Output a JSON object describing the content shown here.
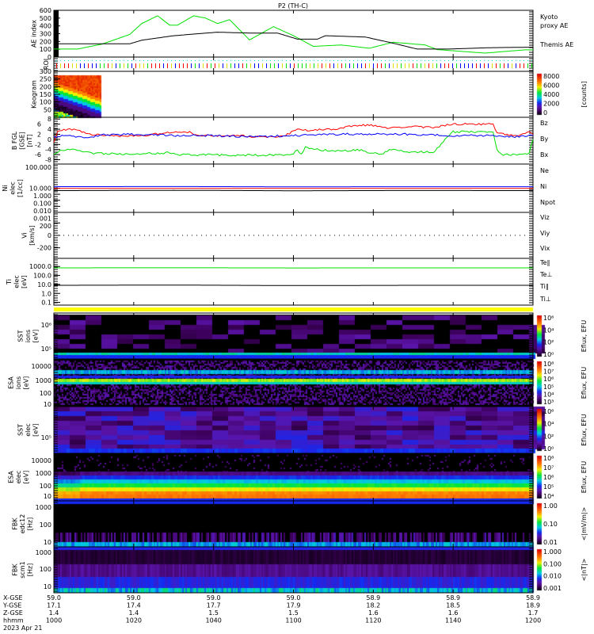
{
  "title": "P2 (TH-C)",
  "chart_data": {
    "type": "line",
    "title": "P2 (TH-C)",
    "time_range_minutes": [
      0,
      120
    ],
    "time_tick_labels": [
      "1000",
      "1020",
      "1040",
      "1100",
      "1120",
      "1140",
      "1200"
    ],
    "panels": {
      "ae": {
        "ylabel": [
          "AE index"
        ],
        "ylim": [
          0,
          600
        ],
        "yticks": [
          [
            0,
            "0"
          ],
          [
            100,
            "100"
          ],
          [
            200,
            "200"
          ],
          [
            300,
            "300"
          ],
          [
            400,
            "400"
          ],
          [
            500,
            "500"
          ],
          [
            600,
            "600"
          ]
        ],
        "series": [
          {
            "name": "Kyoto proxy AE",
            "legend": [
              "Kyoto",
              "proxy AE"
            ],
            "color": "#00e000",
            "points": [
              [
                0,
                103
              ],
              [
                6,
                103
              ],
              [
                12,
                165
              ],
              [
                19,
                290
              ],
              [
                22,
                430
              ],
              [
                26,
                530
              ],
              [
                29,
                410
              ],
              [
                31,
                410
              ],
              [
                35,
                530
              ],
              [
                38,
                500
              ],
              [
                41,
                430
              ],
              [
                44,
                480
              ],
              [
                49,
                220
              ],
              [
                55,
                390
              ],
              [
                60,
                275
              ],
              [
                65,
                137
              ],
              [
                72,
                155
              ],
              [
                79,
                113
              ],
              [
                85,
                190
              ],
              [
                93,
                155
              ],
              [
                96,
                96
              ],
              [
                108,
                51
              ],
              [
                118,
                93
              ],
              [
                120,
                93
              ]
            ]
          },
          {
            "name": "Themis AE",
            "legend": [
              "Themis AE"
            ],
            "color": "#000000",
            "points": [
              [
                0,
                170
              ],
              [
                19,
                170
              ],
              [
                22,
                216
              ],
              [
                30,
                274
              ],
              [
                41,
                319
              ],
              [
                49,
                308
              ],
              [
                56,
                308
              ],
              [
                61,
                230
              ],
              [
                66,
                230
              ],
              [
                68,
                274
              ],
              [
                78,
                257
              ],
              [
                84,
                189
              ],
              [
                91,
                103
              ],
              [
                99,
                103
              ],
              [
                109,
                120
              ],
              [
                120,
                127
              ]
            ]
          }
        ]
      },
      "roi": {
        "ylabel": [
          "ROI"
        ]
      },
      "keogram": {
        "ylabel": [
          "Keogram"
        ],
        "ylim": [
          0,
          300
        ],
        "yticks": [
          [
            50,
            "50"
          ],
          [
            100,
            "100"
          ],
          [
            150,
            "150"
          ],
          [
            200,
            "200"
          ],
          [
            250,
            "250"
          ],
          [
            300,
            "300"
          ]
        ],
        "colorbar": {
          "labels": [
            "8000",
            "6000",
            "4000",
            "2000",
            "0"
          ],
          "unit": "[counts]"
        }
      },
      "b": {
        "ylabel": [
          "B FGL",
          "[GSE]",
          "[nT]"
        ],
        "ylim": [
          -9.7,
          8.7
        ],
        "yticks": [
          [
            8,
            "8"
          ],
          [
            6,
            "6"
          ],
          [
            4,
            "4"
          ],
          [
            2,
            "2"
          ],
          [
            0,
            "0"
          ],
          [
            -2,
            "-2"
          ],
          [
            -4,
            "-4"
          ],
          [
            -6,
            "-6"
          ],
          [
            -8,
            "-8"
          ]
        ],
        "series": [
          {
            "name": "Bz",
            "color": "#ff0000",
            "points": [
              [
                0,
                -1
              ],
              [
                1,
                3.5
              ],
              [
                5,
                4
              ],
              [
                9,
                2
              ],
              [
                16,
                1.2
              ],
              [
                22,
                1.5
              ],
              [
                28,
                2.5
              ],
              [
                34,
                3
              ],
              [
                36,
                1.5
              ],
              [
                45,
                1.5
              ],
              [
                50,
                1.2
              ],
              [
                55,
                1
              ],
              [
                58,
                1.5
              ],
              [
                61,
                4.2
              ],
              [
                64,
                3.5
              ],
              [
                70,
                4
              ],
              [
                75,
                5.5
              ],
              [
                80,
                5.5
              ],
              [
                83,
                4.5
              ],
              [
                90,
                5
              ],
              [
                95,
                4.8
              ],
              [
                100,
                6
              ],
              [
                110,
                6
              ],
              [
                111,
                2.5
              ],
              [
                116,
                1.5
              ],
              [
                119,
                3
              ],
              [
                120,
                2
              ]
            ]
          },
          {
            "name": "By",
            "color": "#00e000",
            "points": [
              [
                0,
                -6
              ],
              [
                2,
                -4
              ],
              [
                6,
                -4.2
              ],
              [
                10,
                -5.5
              ],
              [
                20,
                -5.8
              ],
              [
                30,
                -5.2
              ],
              [
                31,
                -6
              ],
              [
                45,
                -6.2
              ],
              [
                55,
                -6.2
              ],
              [
                60,
                -5.8
              ],
              [
                61,
                -4
              ],
              [
                62,
                -6
              ],
              [
                63,
                -3
              ],
              [
                66,
                -4
              ],
              [
                70,
                -4.5
              ],
              [
                77,
                -4.2
              ],
              [
                80,
                -5.5
              ],
              [
                82,
                -6
              ],
              [
                84,
                -4
              ],
              [
                88,
                -4.8
              ],
              [
                95,
                -5
              ],
              [
                100,
                3
              ],
              [
                110,
                3
              ],
              [
                111,
                -4
              ],
              [
                112,
                -6
              ],
              [
                118,
                -5.8
              ],
              [
                119,
                -5.5
              ],
              [
                120,
                0
              ]
            ]
          },
          {
            "name": "Bx",
            "color": "#0000ff",
            "points": [
              [
                0,
                1
              ],
              [
                4,
                1.5
              ],
              [
                8,
                0.5
              ],
              [
                12,
                1.8
              ],
              [
                20,
                2
              ],
              [
                30,
                1.5
              ],
              [
                40,
                1.5
              ],
              [
                50,
                1
              ],
              [
                60,
                1.5
              ],
              [
                70,
                2
              ],
              [
                80,
                2.2
              ],
              [
                90,
                2
              ],
              [
                100,
                1.5
              ],
              [
                110,
                1.5
              ],
              [
                115,
                1
              ],
              [
                120,
                1.5
              ]
            ]
          }
        ]
      },
      "ni": {
        "ylabel": [
          "Ni",
          "elec",
          "[1/cc]"
        ],
        "ylim_log": [
          0.001,
          100000
        ],
        "yticks": [
          [
            100000,
            "100.000"
          ],
          [
            10,
            "10.000"
          ],
          [
            1,
            "1.000"
          ],
          [
            0.1,
            "0.100"
          ],
          [
            0.01,
            "0.010"
          ],
          [
            0.001,
            "0.001"
          ]
        ],
        "series": [
          {
            "name": "Ne",
            "color": "#ff0000",
            "points": [
              [
                0,
                9.5
              ],
              [
                120,
                9.5
              ]
            ]
          },
          {
            "name": "Ni",
            "color": "#000000",
            "points": [
              [
                0,
                4
              ],
              [
                30,
                4.5
              ],
              [
                60,
                3.8
              ],
              [
                90,
                4.2
              ],
              [
                120,
                4
              ]
            ]
          },
          {
            "name": "Npot",
            "color": "#0000ff",
            "points": [
              [
                0,
                18
              ],
              [
                30,
                19
              ],
              [
                60,
                17
              ],
              [
                90,
                18
              ],
              [
                120,
                18
              ]
            ]
          }
        ]
      },
      "vi": {
        "ylabel": [
          "Vi",
          "[km/s]"
        ],
        "ylim": [
          -370,
          370
        ],
        "yticks": [
          [
            200,
            "200"
          ],
          [
            0,
            "0"
          ],
          [
            -200,
            "-200"
          ]
        ],
        "legend": [
          {
            "name": "Viz",
            "color": "#ff0000"
          },
          {
            "name": "Viy",
            "color": "#00e000"
          },
          {
            "name": "Vix",
            "color": "#0000ff"
          }
        ]
      },
      "ti": {
        "ylabel": [
          "Ti",
          "elec",
          "[eV]"
        ],
        "ylim_log": [
          0.05,
          8000
        ],
        "yticks": [
          [
            1000,
            "1000.0"
          ],
          [
            100,
            "100.0"
          ],
          [
            10,
            "10.0"
          ],
          [
            1,
            "1.0"
          ],
          [
            0.1,
            "0.1"
          ]
        ],
        "series": [
          {
            "name": "Te∥",
            "color": "#000000",
            "points": [
              [
                0,
                8
              ],
              [
                30,
                8.5
              ],
              [
                60,
                7.5
              ],
              [
                90,
                8
              ],
              [
                120,
                8
              ]
            ]
          },
          {
            "name": "Te⊥",
            "color": "#ff0000",
            "points": []
          },
          {
            "name": "Ti∥",
            "color": "#00e000",
            "points": [
              [
                0,
                700
              ],
              [
                30,
                720
              ],
              [
                60,
                690
              ],
              [
                90,
                700
              ],
              [
                120,
                700
              ]
            ]
          },
          {
            "name": "Ti⊥",
            "color": "#0000ff",
            "points": []
          }
        ]
      },
      "sst_ions": {
        "ylabel": [
          "SST",
          "ions",
          "[eV]"
        ],
        "yticks": [
          "10⁶",
          "10⁵"
        ],
        "colorbar": {
          "labels": [
            "10⁶",
            "10⁴",
            "10²",
            "10⁰"
          ],
          "unit": "Eflux, EFU"
        }
      },
      "esa_ions": {
        "ylabel": [
          "ESA",
          "ions",
          "[eV]"
        ],
        "yticks": [
          "10000",
          "1000",
          "100",
          "10"
        ],
        "colorbar": {
          "labels": [
            "10⁸",
            "10⁷",
            "10⁶",
            "10⁵",
            "10⁴",
            "10³"
          ],
          "unit": "Eflux, EFU"
        }
      },
      "sst_elec": {
        "ylabel": [
          "SST",
          "elec",
          "[eV]"
        ],
        "yticks": [
          "10⁵"
        ],
        "colorbar": {
          "labels": [
            "10⁶",
            "10⁴",
            "10²",
            "10⁰"
          ],
          "unit": "Eflux, EFU"
        }
      },
      "esa_elec": {
        "ylabel": [
          "ESA",
          "elec",
          "[eV]"
        ],
        "yticks": [
          "10000",
          "1000",
          "100",
          "10"
        ],
        "colorbar": {
          "labels": [
            "10⁸",
            "10⁷",
            "10⁶",
            "10⁵",
            "10⁴"
          ],
          "unit": "Eflux, EFU"
        }
      },
      "fbk_edc12": {
        "ylabel": [
          "FBK",
          "edc12",
          "[Hz]"
        ],
        "yticks": [
          "1000",
          "100",
          "10"
        ],
        "colorbar": {
          "labels": [
            "1.00",
            "0.10",
            "0.01"
          ],
          "unit": "<|mV/m|>"
        }
      },
      "fbk_scm1": {
        "ylabel": [
          "FBK",
          "scm1",
          "[Hz]"
        ],
        "yticks": [
          "1000",
          "100",
          "10"
        ],
        "colorbar": {
          "labels": [
            "1.000",
            "0.100",
            "0.010",
            "0.001"
          ],
          "unit": "<|nT|>"
        }
      }
    }
  },
  "ephemeris": {
    "rows": [
      {
        "label": "X-GSE",
        "values": [
          "59.0",
          "59.0",
          "59.0",
          "59.0",
          "58.9",
          "58.9",
          "58.9"
        ]
      },
      {
        "label": "Y-GSE",
        "values": [
          "17.1",
          "17.4",
          "17.7",
          "17.9",
          "18.2",
          "18.5",
          "18.9"
        ]
      },
      {
        "label": "Z-GSE",
        "values": [
          "1.4",
          "1.4",
          "1.5",
          "1.5",
          "1.6",
          "1.6",
          "1.7"
        ]
      },
      {
        "label": "hhmm",
        "values": [
          "1000",
          "1020",
          "1040",
          "1100",
          "1120",
          "1140",
          "1200"
        ]
      }
    ],
    "date": "2023 Apr 21"
  }
}
